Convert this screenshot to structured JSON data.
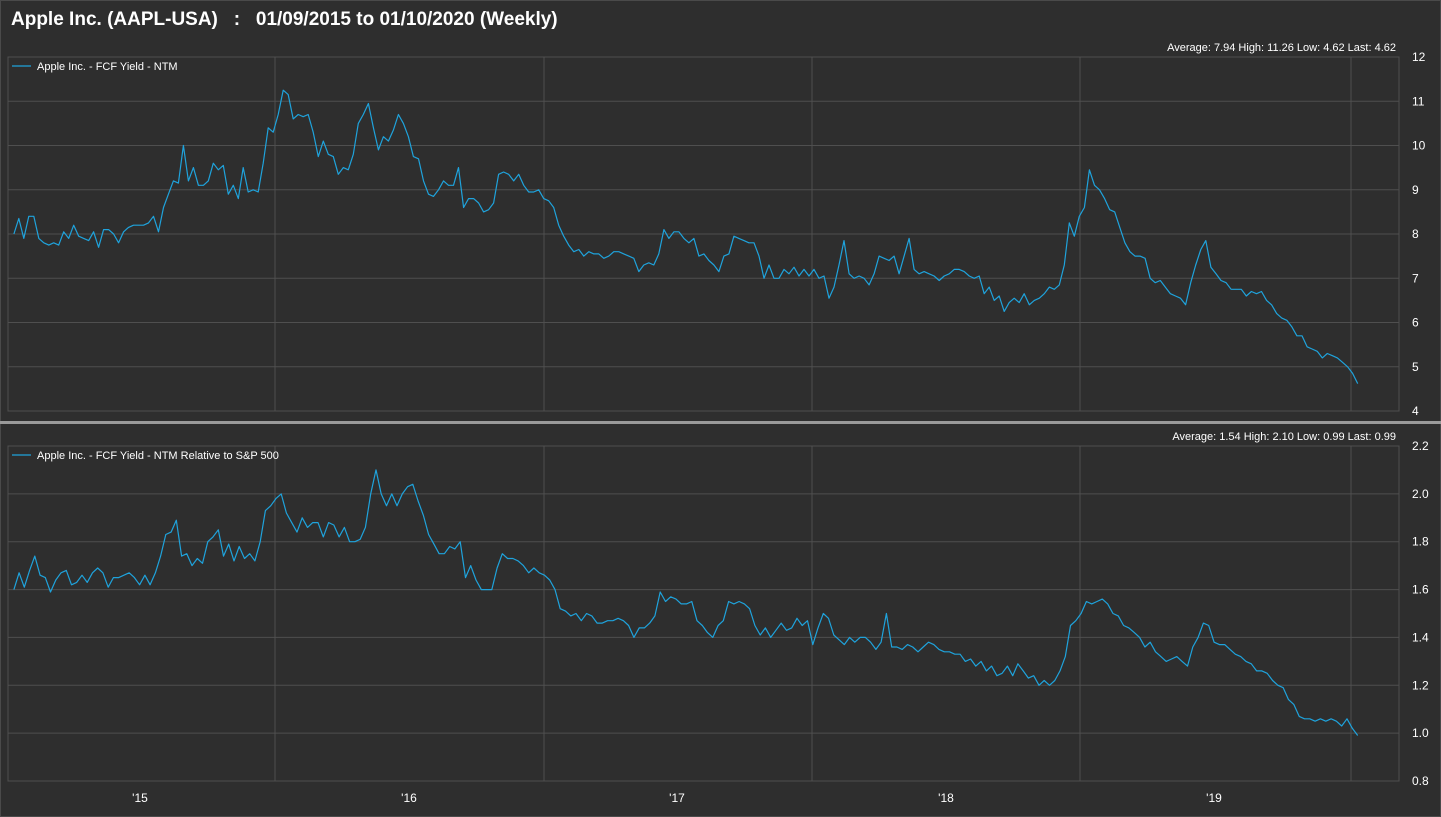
{
  "title": "Apple Inc. (AAPL-USA)   :   01/09/2015 to 01/10/2020 (Weekly)",
  "colors": {
    "background": "#2e2e2e",
    "grid": "#4f4f4f",
    "line": "#1fa3dc",
    "text": "#ffffff",
    "divider": "#9a9a9a"
  },
  "x_axis": {
    "labels": [
      "'15",
      "'16",
      "'17",
      "'18",
      "'19"
    ]
  },
  "chart_data": [
    {
      "type": "line",
      "legend": "Apple Inc. - FCF Yield - NTM",
      "stats": "Average: 7.94 High: 11.26 Low: 4.62 Last: 4.62",
      "ylim": [
        4,
        12
      ],
      "yticks": [
        "4",
        "5",
        "6",
        "7",
        "8",
        "9",
        "10",
        "11",
        "12"
      ],
      "x_start": "2015-01-09",
      "x_end": "2020-01-10",
      "frequency": "weekly",
      "values": [
        8.0,
        8.35,
        7.9,
        8.4,
        8.4,
        7.9,
        7.8,
        7.75,
        7.8,
        7.75,
        8.05,
        7.9,
        8.2,
        7.95,
        7.9,
        7.85,
        8.05,
        7.7,
        8.1,
        8.1,
        8.0,
        7.8,
        8.05,
        8.15,
        8.2,
        8.2,
        8.2,
        8.25,
        8.4,
        8.05,
        8.6,
        8.9,
        9.2,
        9.15,
        10.0,
        9.2,
        9.5,
        9.1,
        9.1,
        9.2,
        9.6,
        9.45,
        9.55,
        8.9,
        9.1,
        8.8,
        9.5,
        8.95,
        9.0,
        8.95,
        9.6,
        10.4,
        10.3,
        10.7,
        11.25,
        11.15,
        10.6,
        10.7,
        10.65,
        10.7,
        10.3,
        9.75,
        10.1,
        9.8,
        9.75,
        9.35,
        9.5,
        9.45,
        9.8,
        10.5,
        10.7,
        10.95,
        10.4,
        9.9,
        10.2,
        10.1,
        10.35,
        10.7,
        10.5,
        10.2,
        9.75,
        9.7,
        9.2,
        8.9,
        8.85,
        9.0,
        9.2,
        9.1,
        9.1,
        9.5,
        8.6,
        8.8,
        8.8,
        8.7,
        8.5,
        8.55,
        8.7,
        9.35,
        9.4,
        9.35,
        9.2,
        9.35,
        9.1,
        8.95,
        8.95,
        9.0,
        8.8,
        8.75,
        8.6,
        8.2,
        7.95,
        7.75,
        7.6,
        7.65,
        7.5,
        7.6,
        7.55,
        7.55,
        7.45,
        7.5,
        7.6,
        7.6,
        7.55,
        7.5,
        7.45,
        7.15,
        7.3,
        7.35,
        7.3,
        7.55,
        8.1,
        7.9,
        8.05,
        8.05,
        7.9,
        7.8,
        7.9,
        7.5,
        7.55,
        7.4,
        7.3,
        7.15,
        7.5,
        7.55,
        7.95,
        7.9,
        7.85,
        7.8,
        7.8,
        7.5,
        7.0,
        7.3,
        7.0,
        7.0,
        7.2,
        7.1,
        7.25,
        7.05,
        7.2,
        7.05,
        7.2,
        7.0,
        7.05,
        6.55,
        6.8,
        7.3,
        7.85,
        7.1,
        7.0,
        7.05,
        7.0,
        6.85,
        7.1,
        7.5,
        7.45,
        7.4,
        7.5,
        7.1,
        7.5,
        7.9,
        7.2,
        7.1,
        7.15,
        7.1,
        7.05,
        6.95,
        7.05,
        7.1,
        7.2,
        7.2,
        7.15,
        7.05,
        7.0,
        7.05,
        6.65,
        6.8,
        6.5,
        6.6,
        6.25,
        6.45,
        6.55,
        6.45,
        6.65,
        6.4,
        6.5,
        6.55,
        6.65,
        6.8,
        6.75,
        6.85,
        7.3,
        8.25,
        7.95,
        8.4,
        8.6,
        9.45,
        9.1,
        9.0,
        8.8,
        8.55,
        8.5,
        8.15,
        7.8,
        7.6,
        7.5,
        7.5,
        7.45,
        7.0,
        6.9,
        6.95,
        6.8,
        6.65,
        6.6,
        6.55,
        6.4,
        6.9,
        7.3,
        7.65,
        7.85,
        7.25,
        7.1,
        6.95,
        6.9,
        6.75,
        6.75,
        6.75,
        6.6,
        6.7,
        6.65,
        6.7,
        6.5,
        6.4,
        6.2,
        6.1,
        6.05,
        5.9,
        5.7,
        5.7,
        5.45,
        5.4,
        5.35,
        5.2,
        5.3,
        5.25,
        5.2,
        5.1,
        5.0,
        4.85,
        4.62
      ]
    },
    {
      "type": "line",
      "legend": "Apple Inc. - FCF Yield - NTM Relative to S&P 500",
      "stats": "Average: 1.54 High: 2.10 Low: 0.99 Last: 0.99",
      "ylim": [
        0.8,
        2.2
      ],
      "yticks": [
        "0.8",
        "1.0",
        "1.2",
        "1.4",
        "1.6",
        "1.8",
        "2.0",
        "2.2"
      ],
      "x_start": "2015-01-09",
      "x_end": "2020-01-10",
      "frequency": "weekly",
      "values": [
        1.6,
        1.67,
        1.61,
        1.68,
        1.74,
        1.66,
        1.65,
        1.59,
        1.64,
        1.67,
        1.68,
        1.62,
        1.63,
        1.66,
        1.63,
        1.67,
        1.69,
        1.67,
        1.61,
        1.65,
        1.65,
        1.66,
        1.67,
        1.65,
        1.62,
        1.66,
        1.62,
        1.67,
        1.74,
        1.83,
        1.84,
        1.89,
        1.74,
        1.75,
        1.7,
        1.73,
        1.71,
        1.8,
        1.82,
        1.85,
        1.74,
        1.79,
        1.72,
        1.78,
        1.73,
        1.75,
        1.72,
        1.8,
        1.93,
        1.95,
        1.98,
        2.0,
        1.92,
        1.88,
        1.84,
        1.9,
        1.86,
        1.88,
        1.88,
        1.82,
        1.88,
        1.87,
        1.82,
        1.86,
        1.8,
        1.8,
        1.81,
        1.86,
        2.0,
        2.1,
        2.0,
        1.95,
        2.0,
        1.95,
        2.0,
        2.03,
        2.04,
        1.97,
        1.91,
        1.83,
        1.79,
        1.75,
        1.75,
        1.78,
        1.77,
        1.8,
        1.65,
        1.7,
        1.64,
        1.6,
        1.6,
        1.6,
        1.69,
        1.75,
        1.73,
        1.73,
        1.72,
        1.7,
        1.67,
        1.69,
        1.67,
        1.66,
        1.64,
        1.6,
        1.52,
        1.51,
        1.49,
        1.5,
        1.47,
        1.5,
        1.49,
        1.46,
        1.46,
        1.47,
        1.47,
        1.48,
        1.47,
        1.45,
        1.4,
        1.44,
        1.44,
        1.46,
        1.49,
        1.59,
        1.55,
        1.57,
        1.56,
        1.54,
        1.54,
        1.55,
        1.47,
        1.45,
        1.42,
        1.4,
        1.45,
        1.47,
        1.55,
        1.54,
        1.55,
        1.54,
        1.52,
        1.45,
        1.41,
        1.44,
        1.4,
        1.43,
        1.46,
        1.43,
        1.44,
        1.48,
        1.45,
        1.47,
        1.37,
        1.44,
        1.5,
        1.48,
        1.41,
        1.39,
        1.37,
        1.4,
        1.38,
        1.4,
        1.4,
        1.38,
        1.35,
        1.38,
        1.5,
        1.36,
        1.36,
        1.35,
        1.37,
        1.36,
        1.34,
        1.36,
        1.38,
        1.37,
        1.35,
        1.34,
        1.34,
        1.33,
        1.33,
        1.3,
        1.31,
        1.28,
        1.3,
        1.26,
        1.28,
        1.24,
        1.25,
        1.28,
        1.24,
        1.29,
        1.26,
        1.23,
        1.24,
        1.2,
        1.22,
        1.2,
        1.22,
        1.26,
        1.32,
        1.45,
        1.47,
        1.5,
        1.55,
        1.54,
        1.55,
        1.56,
        1.54,
        1.5,
        1.49,
        1.45,
        1.44,
        1.42,
        1.4,
        1.36,
        1.38,
        1.34,
        1.32,
        1.3,
        1.31,
        1.32,
        1.3,
        1.28,
        1.36,
        1.4,
        1.46,
        1.45,
        1.38,
        1.37,
        1.37,
        1.35,
        1.33,
        1.32,
        1.3,
        1.29,
        1.26,
        1.26,
        1.25,
        1.22,
        1.2,
        1.19,
        1.14,
        1.12,
        1.07,
        1.06,
        1.06,
        1.05,
        1.06,
        1.05,
        1.06,
        1.05,
        1.03,
        1.06,
        1.02,
        0.99
      ]
    }
  ]
}
